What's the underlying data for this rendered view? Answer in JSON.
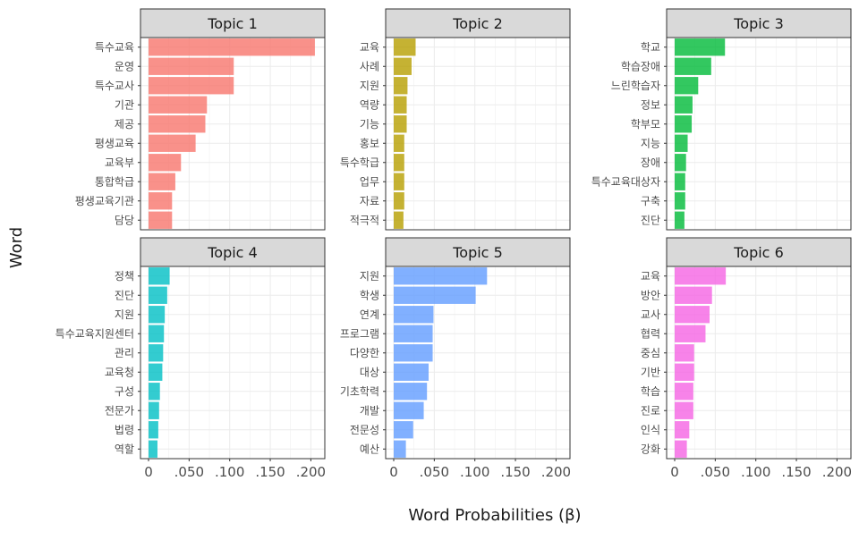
{
  "chart_data": {
    "type": "bar",
    "orientation": "horizontal",
    "layout": "facets-2x3",
    "xlabel": "Word Probabilities (β)",
    "ylabel": "Word",
    "xlim": [
      0,
      0.215
    ],
    "xticks": [
      0,
      0.05,
      0.1,
      0.15,
      0.2
    ],
    "xtick_labels": [
      "0",
      ".050",
      ".100",
      ".150",
      ".200"
    ],
    "grid": true,
    "legend": "none",
    "panels": [
      {
        "title": "Topic 1",
        "color": "#F8766D",
        "categories": [
          "특수교육",
          "운영",
          "특수교사",
          "기관",
          "제공",
          "평생교육",
          "교육부",
          "통합학급",
          "평생교육기관",
          "담당"
        ],
        "values": [
          0.205,
          0.105,
          0.105,
          0.072,
          0.07,
          0.058,
          0.04,
          0.033,
          0.029,
          0.029
        ]
      },
      {
        "title": "Topic 2",
        "color": "#B79F00",
        "categories": [
          "교육",
          "사례",
          "지원",
          "역량",
          "기능",
          "홍보",
          "특수학급",
          "업무",
          "자료",
          "적극적"
        ],
        "values": [
          0.027,
          0.022,
          0.017,
          0.016,
          0.016,
          0.013,
          0.013,
          0.013,
          0.013,
          0.012
        ]
      },
      {
        "title": "Topic 3",
        "color": "#00BA38",
        "categories": [
          "학교",
          "학습장애",
          "느린학습자",
          "정보",
          "학부모",
          "지능",
          "장애",
          "특수교육대상자",
          "구축",
          "진단"
        ],
        "values": [
          0.062,
          0.045,
          0.029,
          0.022,
          0.021,
          0.016,
          0.014,
          0.013,
          0.013,
          0.012
        ]
      },
      {
        "title": "Topic 4",
        "color": "#00BFC4",
        "categories": [
          "정책",
          "진단",
          "지원",
          "특수교육지원센터",
          "관리",
          "교육청",
          "구성",
          "전문가",
          "법령",
          "역할"
        ],
        "values": [
          0.026,
          0.023,
          0.02,
          0.019,
          0.018,
          0.017,
          0.014,
          0.013,
          0.012,
          0.011
        ]
      },
      {
        "title": "Topic 5",
        "color": "#619CFF",
        "categories": [
          "지원",
          "학생",
          "연계",
          "프로그램",
          "다양한",
          "대상",
          "기초학력",
          "개발",
          "전문성",
          "예산"
        ],
        "values": [
          0.115,
          0.101,
          0.049,
          0.048,
          0.048,
          0.043,
          0.041,
          0.037,
          0.024,
          0.015
        ]
      },
      {
        "title": "Topic 6",
        "color": "#F564E3",
        "categories": [
          "교육",
          "방안",
          "교사",
          "협력",
          "중심",
          "기반",
          "학습",
          "진로",
          "인식",
          "강화"
        ],
        "values": [
          0.063,
          0.046,
          0.043,
          0.038,
          0.024,
          0.024,
          0.023,
          0.023,
          0.018,
          0.015
        ]
      }
    ]
  }
}
